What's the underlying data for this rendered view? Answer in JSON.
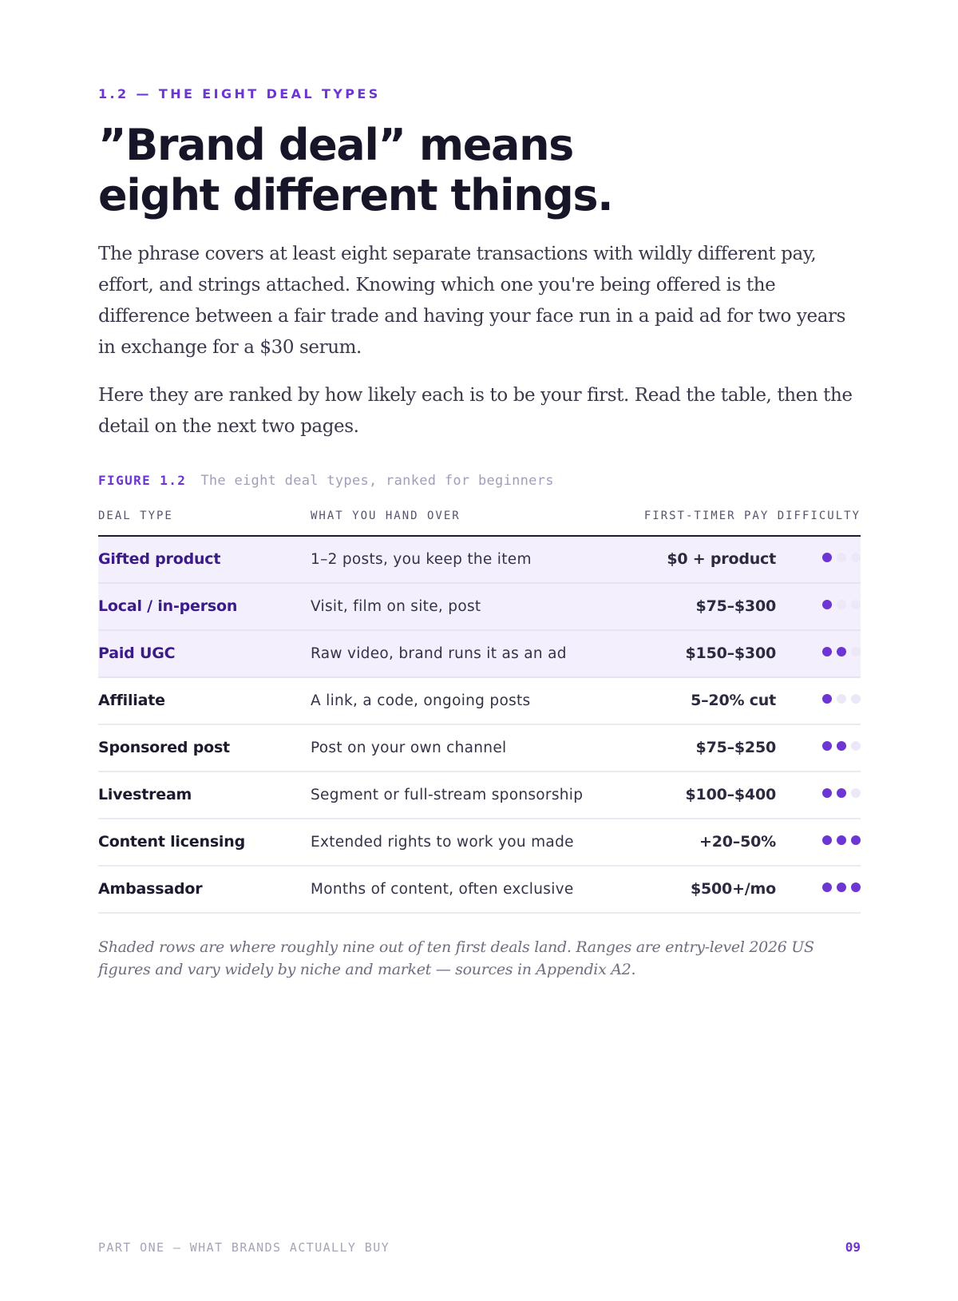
{
  "section_label": "1.2 — THE EIGHT DEAL TYPES",
  "title_line1": "”Brand deal” means",
  "title_line2": "eight different things.",
  "paragraph1": "The phrase covers at least eight separate transactions with wildly different pay, effort, and strings attached. Knowing which one you're being offered is the difference between a fair trade and having your face run in a paid ad for two years in exchange for a $30 serum.",
  "paragraph2": "Here they are ranked by how likely each is to be your first. Read the table, then the detail on the next two pages.",
  "figure": {
    "number": "FIGURE 1.2",
    "caption": "The eight deal types, ranked for beginners"
  },
  "table": {
    "headers": {
      "deal_type": "DEAL TYPE",
      "what": "WHAT YOU HAND OVER",
      "pay_difficulty": "FIRST-TIMER PAY DIFFICULTY"
    },
    "rows": [
      {
        "type": "Gifted product",
        "what": "1–2 posts, you keep the item",
        "pay": "$0 + product",
        "difficulty": 1,
        "shaded": true
      },
      {
        "type": "Local / in-person",
        "what": "Visit, film on site, post",
        "pay": "$75–$300",
        "difficulty": 1,
        "shaded": true
      },
      {
        "type": "Paid UGC",
        "what": "Raw video, brand runs it as an ad",
        "pay": "$150–$300",
        "difficulty": 2,
        "shaded": true
      },
      {
        "type": "Affiliate",
        "what": "A link, a code, ongoing posts",
        "pay": "5–20% cut",
        "difficulty": 1,
        "shaded": false
      },
      {
        "type": "Sponsored post",
        "what": "Post on your own channel",
        "pay": "$75–$250",
        "difficulty": 2,
        "shaded": false
      },
      {
        "type": "Livestream",
        "what": "Segment or full-stream sponsorship",
        "pay": "$100–$400",
        "difficulty": 2,
        "shaded": false
      },
      {
        "type": "Content licensing",
        "what": "Extended rights to work you made",
        "pay": "+20–50%",
        "difficulty": 3,
        "shaded": false
      },
      {
        "type": "Ambassador",
        "what": "Months of content, often exclusive",
        "pay": "$500+/mo",
        "difficulty": 3,
        "shaded": false
      }
    ],
    "difficulty_max": 3
  },
  "note": "Shaded rows are where roughly nine out of ten first deals land. Ranges are entry-level 2026 US figures and vary widely by niche and market — sources in Appendix A2.",
  "footer": {
    "running_title": "PART ONE — WHAT BRANDS ACTUALLY BUY",
    "page_number": "09"
  },
  "colors": {
    "accent": "#6d35d2",
    "shade": "#f3effd",
    "dot_off": "#ece8f8",
    "ink": "#1c1a2e"
  }
}
